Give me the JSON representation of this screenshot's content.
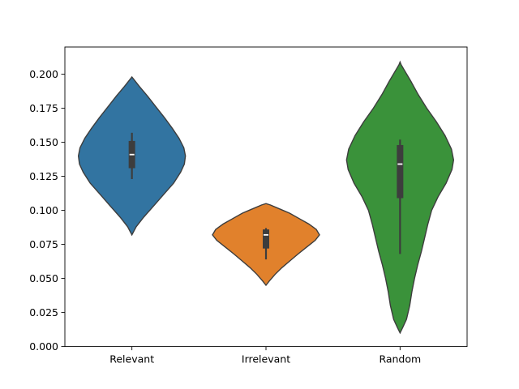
{
  "chart_data": {
    "type": "violin",
    "title": "",
    "xlabel": "",
    "ylabel": "",
    "ylim": [
      0,
      0.22
    ],
    "y_ticks": [
      0.0,
      0.025,
      0.05,
      0.075,
      0.1,
      0.125,
      0.15,
      0.175,
      0.2
    ],
    "y_tick_labels": [
      "0.000",
      "0.025",
      "0.050",
      "0.075",
      "0.100",
      "0.125",
      "0.150",
      "0.175",
      "0.200"
    ],
    "categories": [
      "Relevant",
      "Irrelevant",
      "Random"
    ],
    "grid": false,
    "legend": "none",
    "series": [
      {
        "category": "Relevant",
        "color": "#3274a1",
        "min": 0.082,
        "max": 0.198,
        "q1": 0.131,
        "median": 0.141,
        "q3": 0.151,
        "whisker_low": 0.123,
        "whisker_high": 0.157,
        "density": [
          [
            0.082,
            0.0
          ],
          [
            0.088,
            0.08
          ],
          [
            0.095,
            0.22
          ],
          [
            0.103,
            0.4
          ],
          [
            0.112,
            0.6
          ],
          [
            0.12,
            0.78
          ],
          [
            0.128,
            0.91
          ],
          [
            0.134,
            0.98
          ],
          [
            0.14,
            1.0
          ],
          [
            0.146,
            0.97
          ],
          [
            0.153,
            0.88
          ],
          [
            0.16,
            0.76
          ],
          [
            0.168,
            0.61
          ],
          [
            0.176,
            0.45
          ],
          [
            0.184,
            0.29
          ],
          [
            0.191,
            0.14
          ],
          [
            0.196,
            0.04
          ],
          [
            0.198,
            0.0
          ]
        ]
      },
      {
        "category": "Irrelevant",
        "color": "#e1812c",
        "min": 0.045,
        "max": 0.105,
        "q1": 0.072,
        "median": 0.082,
        "q3": 0.086,
        "whisker_low": 0.064,
        "whisker_high": 0.087,
        "density": [
          [
            0.045,
            0.0
          ],
          [
            0.048,
            0.06
          ],
          [
            0.053,
            0.17
          ],
          [
            0.058,
            0.3
          ],
          [
            0.063,
            0.45
          ],
          [
            0.068,
            0.6
          ],
          [
            0.073,
            0.76
          ],
          [
            0.078,
            0.92
          ],
          [
            0.082,
            1.0
          ],
          [
            0.086,
            0.94
          ],
          [
            0.09,
            0.8
          ],
          [
            0.094,
            0.62
          ],
          [
            0.098,
            0.44
          ],
          [
            0.101,
            0.26
          ],
          [
            0.104,
            0.08
          ],
          [
            0.105,
            0.0
          ]
        ]
      },
      {
        "category": "Random",
        "color": "#3a923a",
        "min": 0.01,
        "max": 0.209,
        "q1": 0.109,
        "median": 0.134,
        "q3": 0.148,
        "whisker_low": 0.068,
        "whisker_high": 0.152,
        "density": [
          [
            0.01,
            0.0
          ],
          [
            0.014,
            0.05
          ],
          [
            0.02,
            0.12
          ],
          [
            0.03,
            0.18
          ],
          [
            0.04,
            0.22
          ],
          [
            0.05,
            0.27
          ],
          [
            0.06,
            0.33
          ],
          [
            0.07,
            0.4
          ],
          [
            0.08,
            0.46
          ],
          [
            0.09,
            0.52
          ],
          [
            0.1,
            0.59
          ],
          [
            0.11,
            0.71
          ],
          [
            0.12,
            0.86
          ],
          [
            0.13,
            0.97
          ],
          [
            0.137,
            1.0
          ],
          [
            0.145,
            0.96
          ],
          [
            0.155,
            0.84
          ],
          [
            0.165,
            0.68
          ],
          [
            0.175,
            0.5
          ],
          [
            0.185,
            0.34
          ],
          [
            0.195,
            0.2
          ],
          [
            0.203,
            0.08
          ],
          [
            0.207,
            0.02
          ],
          [
            0.209,
            0.0
          ]
        ]
      }
    ]
  }
}
